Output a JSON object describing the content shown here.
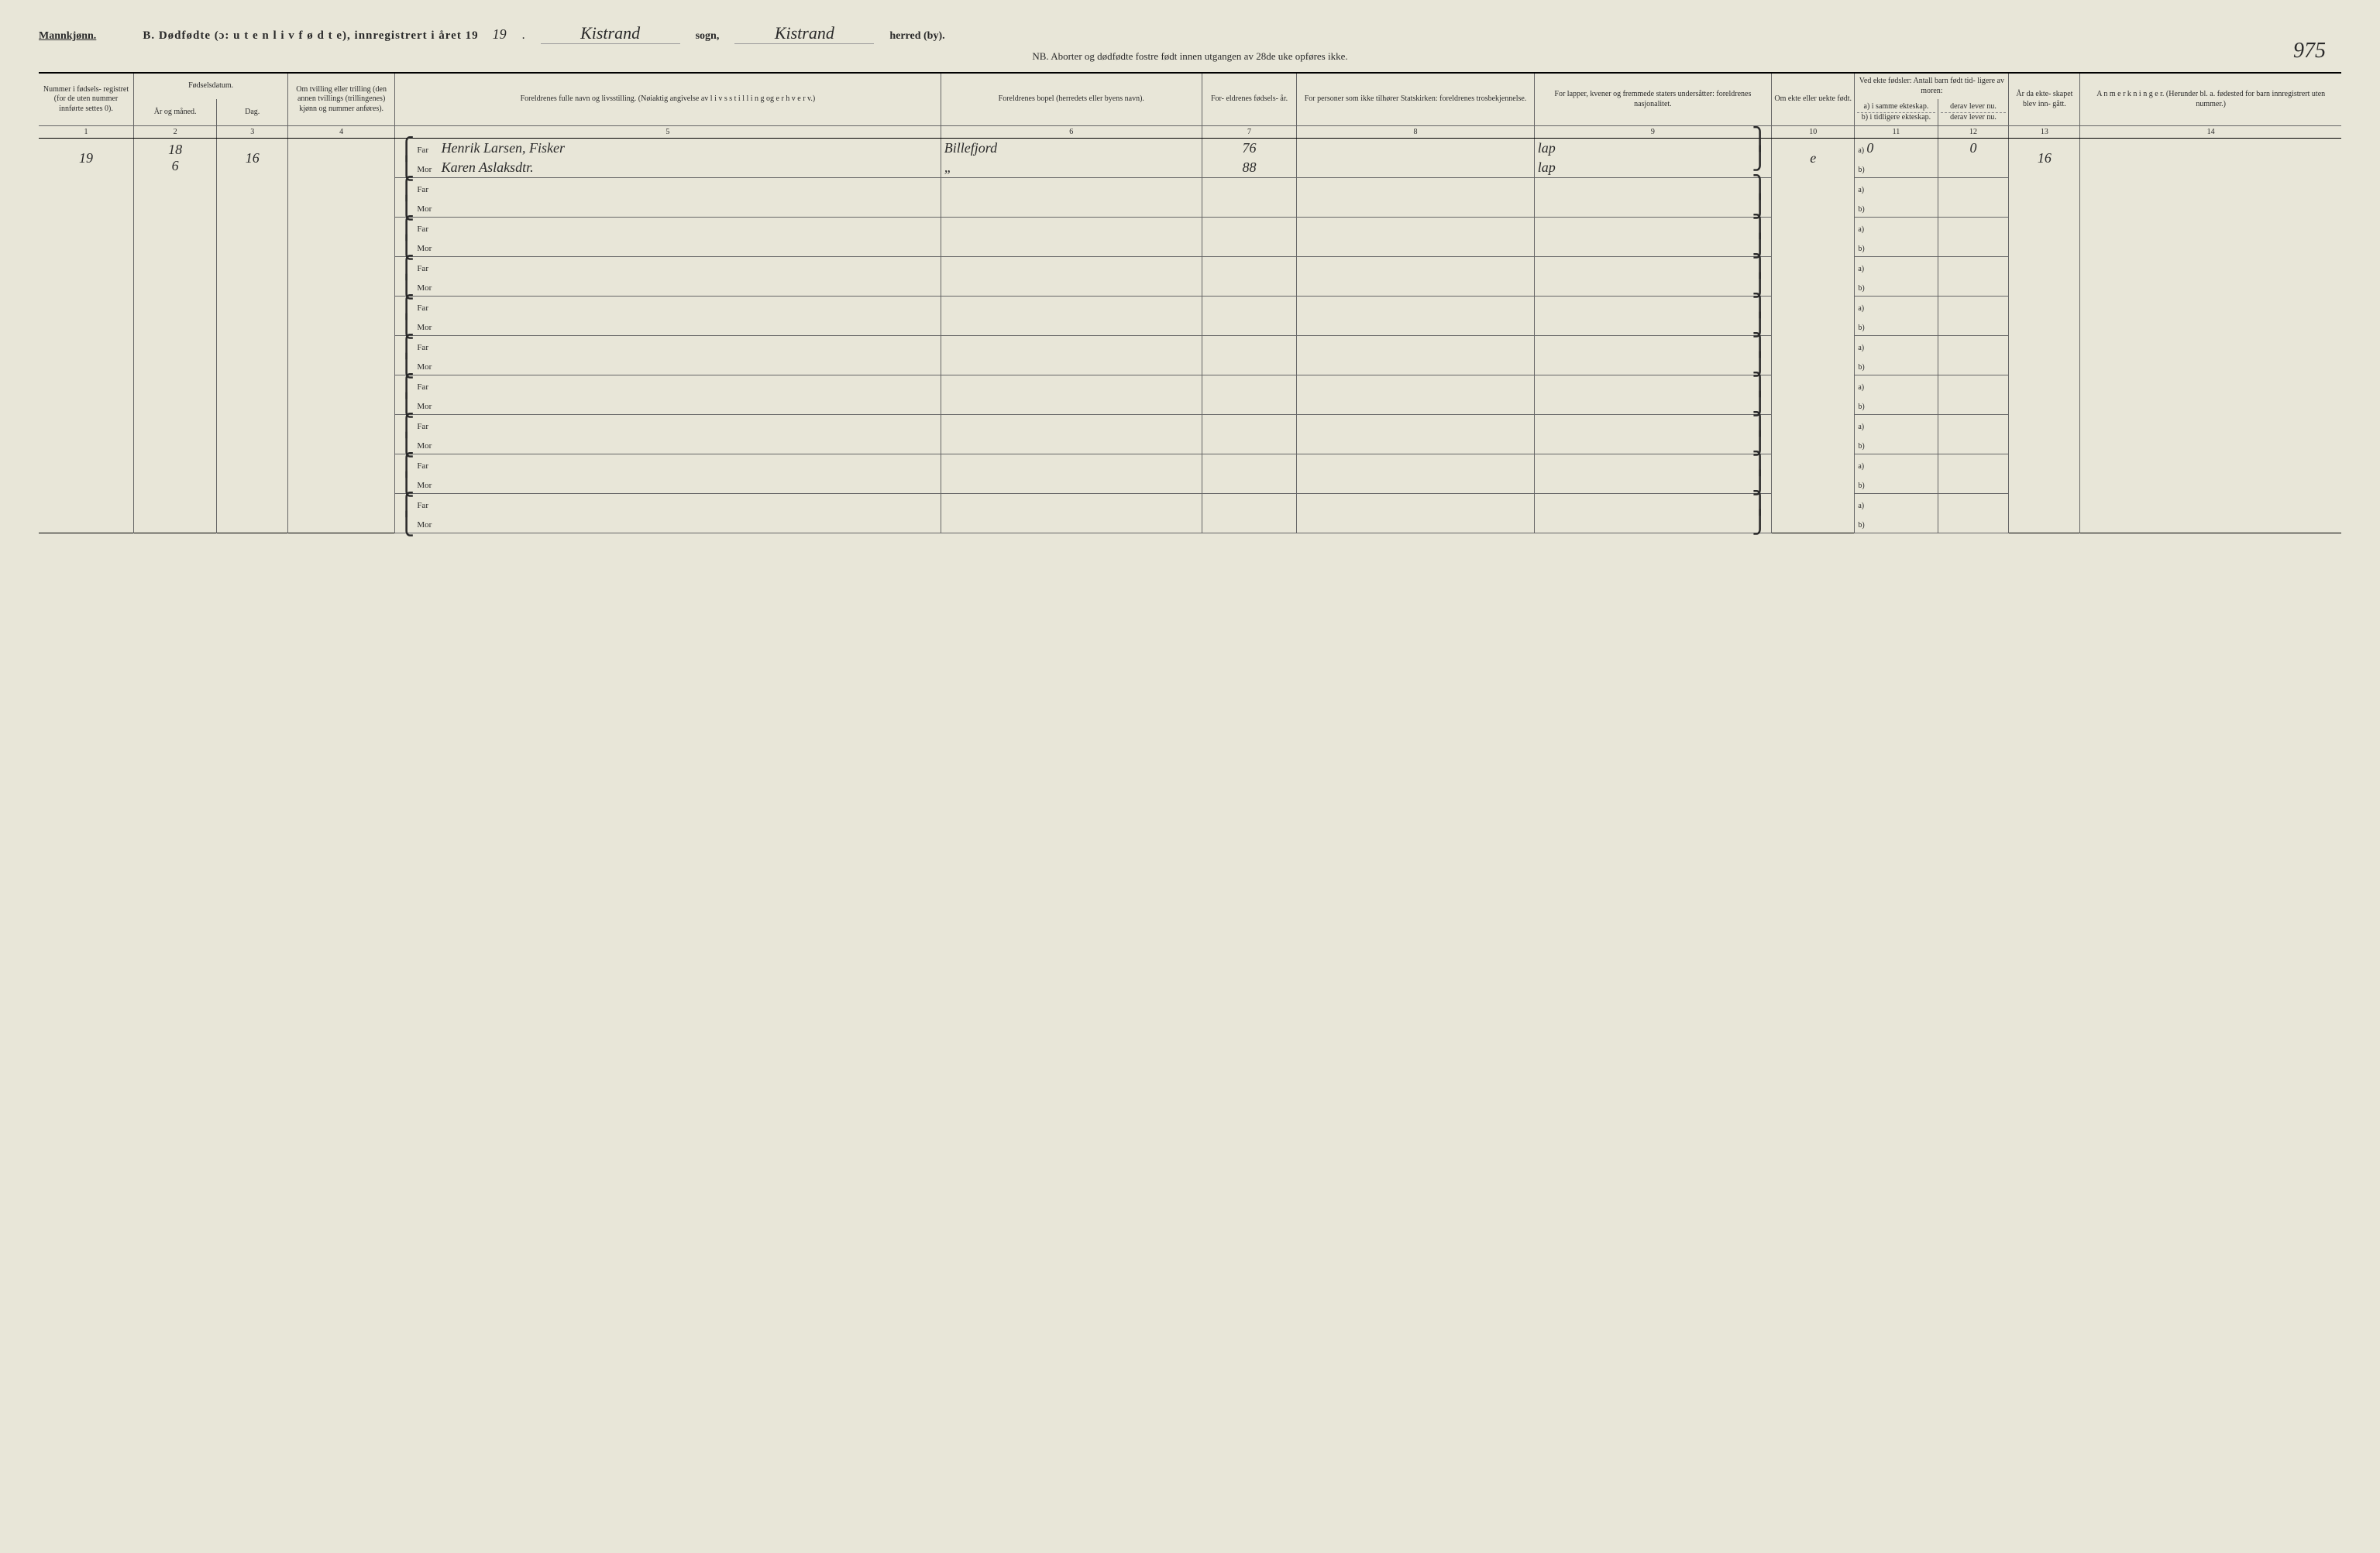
{
  "header": {
    "gender": "Mannkjønn.",
    "title_prefix": "B.  Dødfødte (ɔ: u t e n  l i v  f ø d t e),  innregistrert i året 19",
    "year_suffix": "19",
    "period": ".",
    "sogn_value": "Kistrand",
    "sogn_label": "sogn,",
    "herred_value": "Kistrand",
    "herred_label": "herred (by).",
    "page_number": "975",
    "nb_text": "NB.  Aborter og dødfødte fostre født innen utgangen av 28de uke opføres ikke."
  },
  "columns": {
    "c1": "Nummer i fødsels- registret (for de uten nummer innførte settes 0).",
    "c2_top": "Fødselsdatum.",
    "c2a": "År og måned.",
    "c2b": "Dag.",
    "c4": "Om tvilling eller trilling (den annen tvillings (trillingenes) kjønn og nummer anføres).",
    "c5": "Foreldrenes fulle navn og livsstilling.\n(Nøiaktig angivelse av  l i v s s t i l l i n g  og  e r h v e r v.)",
    "c6": "Foreldrenes bopel\n(herredets eller byens navn).",
    "c7": "For- eldrenes fødsels- år.",
    "c8": "For personer som ikke tilhører Statskirken:\nforeldrenes trosbekjennelse.",
    "c9": "For lapper, kvener og fremmede staters undersåtter:\nforeldrenes nasjonalitet.",
    "c10": "Om ekte eller uekte født.",
    "c11_top": "Ved ekte fødsler:\nAntall barn født tid- ligere av moren:",
    "c11a": "a) i samme ekteskap.",
    "c11b": "b) i tidligere ekteskap.",
    "c12a": "derav lever nu.",
    "c12b": "derav lever nu.",
    "c13": "År da ekte- skapet blev inn- gått.",
    "c14": "A n m e r k n i n g e r.\n(Herunder bl. a. fødested for barn innregistrert uten nummer.)"
  },
  "colnums": [
    "1",
    "2",
    "3",
    "4",
    "5",
    "6",
    "7",
    "8",
    "9",
    "10",
    "11",
    "12",
    "13",
    "14"
  ],
  "labels": {
    "far": "Far",
    "mor": "Mor",
    "a": "a)",
    "b": "b)"
  },
  "rows": [
    {
      "num": "19",
      "year_month": "18\n6",
      "day": "16",
      "twin": "",
      "far_name": "Henrik Larsen, Fisker",
      "mor_name": "Karen Aslaksdtr.",
      "far_bopel": "Billefjord",
      "mor_bopel": "„",
      "far_year": "76",
      "mor_year": "88",
      "far_tros": "",
      "mor_tros": "",
      "far_nat": "lap",
      "mor_nat": "lap",
      "ekte": "e",
      "a_val": "0",
      "a_lever": "0",
      "b_val": "",
      "b_lever": "",
      "ekteskap_year": "16",
      "anm": ""
    },
    {
      "num": "",
      "year_month": "",
      "day": "",
      "twin": "",
      "far_name": "",
      "mor_name": "",
      "far_bopel": "",
      "mor_bopel": "",
      "far_year": "",
      "mor_year": "",
      "far_tros": "",
      "mor_tros": "",
      "far_nat": "",
      "mor_nat": "",
      "ekte": "",
      "a_val": "",
      "a_lever": "",
      "b_val": "",
      "b_lever": "",
      "ekteskap_year": "",
      "anm": ""
    },
    {
      "num": "",
      "year_month": "",
      "day": "",
      "twin": "",
      "far_name": "",
      "mor_name": "",
      "far_bopel": "",
      "mor_bopel": "",
      "far_year": "",
      "mor_year": "",
      "far_tros": "",
      "mor_tros": "",
      "far_nat": "",
      "mor_nat": "",
      "ekte": "",
      "a_val": "",
      "a_lever": "",
      "b_val": "",
      "b_lever": "",
      "ekteskap_year": "",
      "anm": ""
    },
    {
      "num": "",
      "year_month": "",
      "day": "",
      "twin": "",
      "far_name": "",
      "mor_name": "",
      "far_bopel": "",
      "mor_bopel": "",
      "far_year": "",
      "mor_year": "",
      "far_tros": "",
      "mor_tros": "",
      "far_nat": "",
      "mor_nat": "",
      "ekte": "",
      "a_val": "",
      "a_lever": "",
      "b_val": "",
      "b_lever": "",
      "ekteskap_year": "",
      "anm": ""
    },
    {
      "num": "",
      "year_month": "",
      "day": "",
      "twin": "",
      "far_name": "",
      "mor_name": "",
      "far_bopel": "",
      "mor_bopel": "",
      "far_year": "",
      "mor_year": "",
      "far_tros": "",
      "mor_tros": "",
      "far_nat": "",
      "mor_nat": "",
      "ekte": "",
      "a_val": "",
      "a_lever": "",
      "b_val": "",
      "b_lever": "",
      "ekteskap_year": "",
      "anm": ""
    },
    {
      "num": "",
      "year_month": "",
      "day": "",
      "twin": "",
      "far_name": "",
      "mor_name": "",
      "far_bopel": "",
      "mor_bopel": "",
      "far_year": "",
      "mor_year": "",
      "far_tros": "",
      "mor_tros": "",
      "far_nat": "",
      "mor_nat": "",
      "ekte": "",
      "a_val": "",
      "a_lever": "",
      "b_val": "",
      "b_lever": "",
      "ekteskap_year": "",
      "anm": ""
    },
    {
      "num": "",
      "year_month": "",
      "day": "",
      "twin": "",
      "far_name": "",
      "mor_name": "",
      "far_bopel": "",
      "mor_bopel": "",
      "far_year": "",
      "mor_year": "",
      "far_tros": "",
      "mor_tros": "",
      "far_nat": "",
      "mor_nat": "",
      "ekte": "",
      "a_val": "",
      "a_lever": "",
      "b_val": "",
      "b_lever": "",
      "ekteskap_year": "",
      "anm": ""
    },
    {
      "num": "",
      "year_month": "",
      "day": "",
      "twin": "",
      "far_name": "",
      "mor_name": "",
      "far_bopel": "",
      "mor_bopel": "",
      "far_year": "",
      "mor_year": "",
      "far_tros": "",
      "mor_tros": "",
      "far_nat": "",
      "mor_nat": "",
      "ekte": "",
      "a_val": "",
      "a_lever": "",
      "b_val": "",
      "b_lever": "",
      "ekteskap_year": "",
      "anm": ""
    },
    {
      "num": "",
      "year_month": "",
      "day": "",
      "twin": "",
      "far_name": "",
      "mor_name": "",
      "far_bopel": "",
      "mor_bopel": "",
      "far_year": "",
      "mor_year": "",
      "far_tros": "",
      "mor_tros": "",
      "far_nat": "",
      "mor_nat": "",
      "ekte": "",
      "a_val": "",
      "a_lever": "",
      "b_val": "",
      "b_lever": "",
      "ekteskap_year": "",
      "anm": ""
    },
    {
      "num": "",
      "year_month": "",
      "day": "",
      "twin": "",
      "far_name": "",
      "mor_name": "",
      "far_bopel": "",
      "mor_bopel": "",
      "far_year": "",
      "mor_year": "",
      "far_tros": "",
      "mor_tros": "",
      "far_nat": "",
      "mor_nat": "",
      "ekte": "",
      "a_val": "",
      "a_lever": "",
      "b_val": "",
      "b_lever": "",
      "ekteskap_year": "",
      "anm": ""
    }
  ]
}
